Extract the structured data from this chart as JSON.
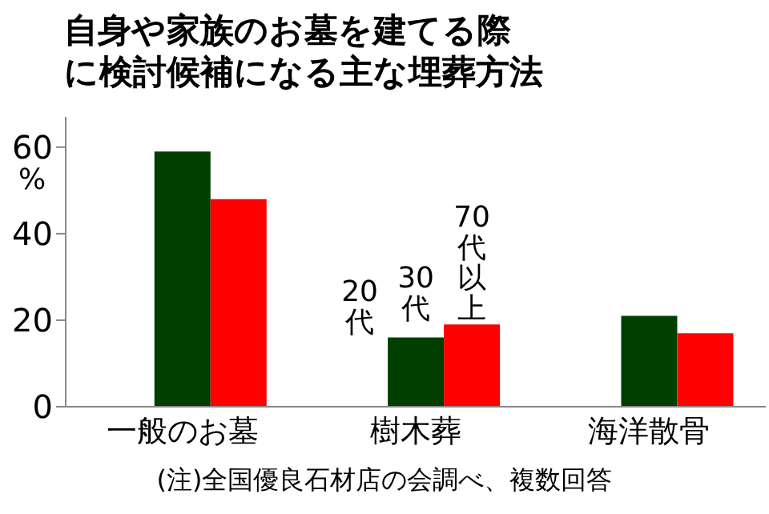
{
  "chart_data": {
    "type": "bar",
    "title": "自身や家族のお墓を建てる際に検討候補になる主な埋葬方法",
    "ylabel": "%",
    "categories": [
      "一般のお墓",
      "樹木葬",
      "海洋散骨"
    ],
    "series": [
      {
        "name": "20代",
        "color": "#1a1a1a",
        "values": [
          0,
          0,
          0
        ]
      },
      {
        "name": "30代",
        "color": "#003f00",
        "values": [
          59,
          16,
          21
        ]
      },
      {
        "name": "70代以上",
        "color": "#ff0000",
        "values": [
          48,
          19,
          17
        ]
      }
    ],
    "ylim": [
      0,
      67
    ],
    "yticks": [
      0,
      20,
      40,
      60
    ],
    "grid": false,
    "annotations": [
      "(注)全国優良石材店の会調べ、複数回答"
    ]
  }
}
